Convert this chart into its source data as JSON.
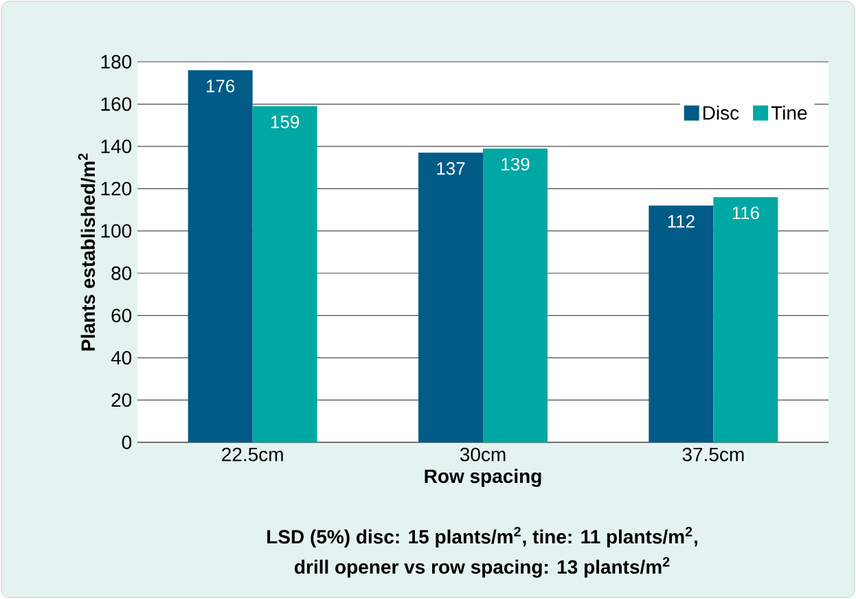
{
  "chart_data": {
    "type": "bar",
    "categories": [
      "22.5cm",
      "30cm",
      "37.5cm"
    ],
    "series": [
      {
        "name": "Disc",
        "color": "#005b86",
        "values": [
          176,
          137,
          112
        ]
      },
      {
        "name": "Tine",
        "color": "#00a8a3",
        "values": [
          159,
          139,
          116
        ]
      }
    ],
    "xlabel": "Row spacing",
    "ylabel": "Plants established/m$^{2}$",
    "annotations": [
      "LSD (5%) disc: 15 plants/m$^{2}$, tine: 11 plants/m$^{2}$,",
      "drill opener vs row spacing: 13 plants/m$^{2}$"
    ],
    "ylim": [
      0,
      180
    ],
    "yticks": [
      0,
      20,
      40,
      60,
      80,
      100,
      120,
      140,
      160,
      180
    ],
    "grid": "y",
    "legend": "top right",
    "data_labels": true
  }
}
